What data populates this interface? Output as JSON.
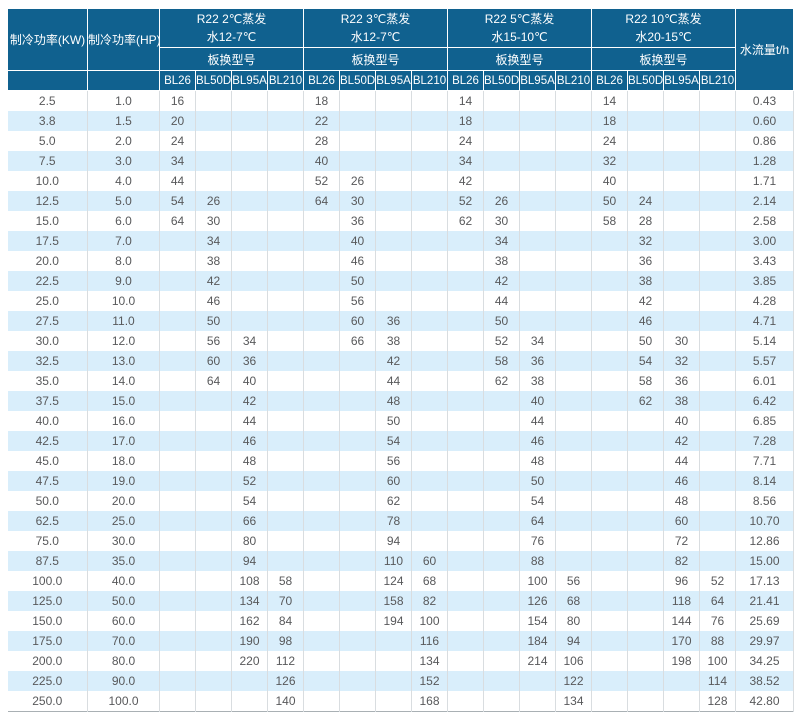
{
  "colors": {
    "header_bg": "#10618f",
    "row_alt_bg": "#d9eefb",
    "row_bg": "#ffffff",
    "data_text": "#58595b",
    "grid_line": "#d9dde0"
  },
  "chart_data": {
    "type": "table",
    "header": {
      "kw": "制冷功率(KW)",
      "hp": "制冷功率(HP)",
      "flow": "水流量t/h",
      "model_label": "板换型号",
      "models": [
        "BL26",
        "BL50D",
        "BL95A",
        "BL210"
      ],
      "groups": [
        {
          "title": "R22 2℃蒸发",
          "water": "水12-7℃"
        },
        {
          "title": "R22 3℃蒸发",
          "water": "水12-7℃"
        },
        {
          "title": "R22 5℃蒸发",
          "water": "水15-10℃"
        },
        {
          "title": "R22 10℃蒸发",
          "water": "水20-15℃"
        }
      ]
    },
    "rows": [
      {
        "kw": "2.5",
        "hp": "1.0",
        "values": [
          "16",
          "",
          "",
          "",
          "18",
          "",
          "",
          "",
          "14",
          "",
          "",
          "",
          "14",
          "",
          "",
          ""
        ],
        "flow": "0.43"
      },
      {
        "kw": "3.8",
        "hp": "1.5",
        "values": [
          "20",
          "",
          "",
          "",
          "22",
          "",
          "",
          "",
          "18",
          "",
          "",
          "",
          "18",
          "",
          "",
          ""
        ],
        "flow": "0.60"
      },
      {
        "kw": "5.0",
        "hp": "2.0",
        "values": [
          "24",
          "",
          "",
          "",
          "28",
          "",
          "",
          "",
          "24",
          "",
          "",
          "",
          "24",
          "",
          "",
          ""
        ],
        "flow": "0.86"
      },
      {
        "kw": "7.5",
        "hp": "3.0",
        "values": [
          "34",
          "",
          "",
          "",
          "40",
          "",
          "",
          "",
          "34",
          "",
          "",
          "",
          "32",
          "",
          "",
          ""
        ],
        "flow": "1.28"
      },
      {
        "kw": "10.0",
        "hp": "4.0",
        "values": [
          "44",
          "",
          "",
          "",
          "52",
          "26",
          "",
          "",
          "42",
          "",
          "",
          "",
          "40",
          "",
          "",
          ""
        ],
        "flow": "1.71"
      },
      {
        "kw": "12.5",
        "hp": "5.0",
        "values": [
          "54",
          "26",
          "",
          "",
          "64",
          "30",
          "",
          "",
          "52",
          "26",
          "",
          "",
          "50",
          "24",
          "",
          ""
        ],
        "flow": "2.14"
      },
      {
        "kw": "15.0",
        "hp": "6.0",
        "values": [
          "64",
          "30",
          "",
          "",
          "",
          "36",
          "",
          "",
          "62",
          "30",
          "",
          "",
          "58",
          "28",
          "",
          ""
        ],
        "flow": "2.58"
      },
      {
        "kw": "17.5",
        "hp": "7.0",
        "values": [
          "",
          "34",
          "",
          "",
          "",
          "40",
          "",
          "",
          "",
          "34",
          "",
          "",
          "",
          "32",
          "",
          ""
        ],
        "flow": "3.00"
      },
      {
        "kw": "20.0",
        "hp": "8.0",
        "values": [
          "",
          "38",
          "",
          "",
          "",
          "46",
          "",
          "",
          "",
          "38",
          "",
          "",
          "",
          "36",
          "",
          ""
        ],
        "flow": "3.43"
      },
      {
        "kw": "22.5",
        "hp": "9.0",
        "values": [
          "",
          "42",
          "",
          "",
          "",
          "50",
          "",
          "",
          "",
          "42",
          "",
          "",
          "",
          "38",
          "",
          ""
        ],
        "flow": "3.85"
      },
      {
        "kw": "25.0",
        "hp": "10.0",
        "values": [
          "",
          "46",
          "",
          "",
          "",
          "56",
          "",
          "",
          "",
          "44",
          "",
          "",
          "",
          "42",
          "",
          ""
        ],
        "flow": "4.28"
      },
      {
        "kw": "27.5",
        "hp": "11.0",
        "values": [
          "",
          "50",
          "",
          "",
          "",
          "60",
          "36",
          "",
          "",
          "50",
          "",
          "",
          "",
          "46",
          "",
          ""
        ],
        "flow": "4.71"
      },
      {
        "kw": "30.0",
        "hp": "12.0",
        "values": [
          "",
          "56",
          "34",
          "",
          "",
          "66",
          "38",
          "",
          "",
          "52",
          "34",
          "",
          "",
          "50",
          "30",
          ""
        ],
        "flow": "5.14"
      },
      {
        "kw": "32.5",
        "hp": "13.0",
        "values": [
          "",
          "60",
          "36",
          "",
          "",
          "",
          "42",
          "",
          "",
          "58",
          "36",
          "",
          "",
          "54",
          "32",
          ""
        ],
        "flow": "5.57"
      },
      {
        "kw": "35.0",
        "hp": "14.0",
        "values": [
          "",
          "64",
          "40",
          "",
          "",
          "",
          "44",
          "",
          "",
          "62",
          "38",
          "",
          "",
          "58",
          "36",
          ""
        ],
        "flow": "6.01"
      },
      {
        "kw": "37.5",
        "hp": "15.0",
        "values": [
          "",
          "",
          "42",
          "",
          "",
          "",
          "48",
          "",
          "",
          "",
          "40",
          "",
          "",
          "62",
          "38",
          ""
        ],
        "flow": "6.42"
      },
      {
        "kw": "40.0",
        "hp": "16.0",
        "values": [
          "",
          "",
          "44",
          "",
          "",
          "",
          "50",
          "",
          "",
          "",
          "44",
          "",
          "",
          "",
          "40",
          ""
        ],
        "flow": "6.85"
      },
      {
        "kw": "42.5",
        "hp": "17.0",
        "values": [
          "",
          "",
          "46",
          "",
          "",
          "",
          "54",
          "",
          "",
          "",
          "46",
          "",
          "",
          "",
          "42",
          ""
        ],
        "flow": "7.28"
      },
      {
        "kw": "45.0",
        "hp": "18.0",
        "values": [
          "",
          "",
          "48",
          "",
          "",
          "",
          "56",
          "",
          "",
          "",
          "48",
          "",
          "",
          "",
          "44",
          ""
        ],
        "flow": "7.71"
      },
      {
        "kw": "47.5",
        "hp": "19.0",
        "values": [
          "",
          "",
          "52",
          "",
          "",
          "",
          "60",
          "",
          "",
          "",
          "50",
          "",
          "",
          "",
          "46",
          ""
        ],
        "flow": "8.14"
      },
      {
        "kw": "50.0",
        "hp": "20.0",
        "values": [
          "",
          "",
          "54",
          "",
          "",
          "",
          "62",
          "",
          "",
          "",
          "54",
          "",
          "",
          "",
          "48",
          ""
        ],
        "flow": "8.56"
      },
      {
        "kw": "62.5",
        "hp": "25.0",
        "values": [
          "",
          "",
          "66",
          "",
          "",
          "",
          "78",
          "",
          "",
          "",
          "64",
          "",
          "",
          "",
          "60",
          ""
        ],
        "flow": "10.70"
      },
      {
        "kw": "75.0",
        "hp": "30.0",
        "values": [
          "",
          "",
          "80",
          "",
          "",
          "",
          "94",
          "",
          "",
          "",
          "76",
          "",
          "",
          "",
          "72",
          ""
        ],
        "flow": "12.86"
      },
      {
        "kw": "87.5",
        "hp": "35.0",
        "values": [
          "",
          "",
          "94",
          "",
          "",
          "",
          "110",
          "60",
          "",
          "",
          "88",
          "",
          "",
          "",
          "82",
          ""
        ],
        "flow": "15.00"
      },
      {
        "kw": "100.0",
        "hp": "40.0",
        "values": [
          "",
          "",
          "108",
          "58",
          "",
          "",
          "124",
          "68",
          "",
          "",
          "100",
          "56",
          "",
          "",
          "96",
          "52"
        ],
        "flow": "17.13"
      },
      {
        "kw": "125.0",
        "hp": "50.0",
        "values": [
          "",
          "",
          "134",
          "70",
          "",
          "",
          "158",
          "82",
          "",
          "",
          "126",
          "68",
          "",
          "",
          "118",
          "64"
        ],
        "flow": "21.41"
      },
      {
        "kw": "150.0",
        "hp": "60.0",
        "values": [
          "",
          "",
          "162",
          "84",
          "",
          "",
          "194",
          "100",
          "",
          "",
          "154",
          "80",
          "",
          "",
          "144",
          "76"
        ],
        "flow": "25.69"
      },
      {
        "kw": "175.0",
        "hp": "70.0",
        "values": [
          "",
          "",
          "190",
          "98",
          "",
          "",
          "",
          "116",
          "",
          "",
          "184",
          "94",
          "",
          "",
          "170",
          "88"
        ],
        "flow": "29.97"
      },
      {
        "kw": "200.0",
        "hp": "80.0",
        "values": [
          "",
          "",
          "220",
          "112",
          "",
          "",
          "",
          "134",
          "",
          "",
          "214",
          "106",
          "",
          "",
          "198",
          "100"
        ],
        "flow": "34.25"
      },
      {
        "kw": "225.0",
        "hp": "90.0",
        "values": [
          "",
          "",
          "",
          "126",
          "",
          "",
          "",
          "152",
          "",
          "",
          "",
          "122",
          "",
          "",
          "",
          "114"
        ],
        "flow": "38.52"
      },
      {
        "kw": "250.0",
        "hp": "100.0",
        "values": [
          "",
          "",
          "",
          "140",
          "",
          "",
          "",
          "168",
          "",
          "",
          "",
          "134",
          "",
          "",
          "",
          "128"
        ],
        "flow": "42.80"
      }
    ]
  }
}
